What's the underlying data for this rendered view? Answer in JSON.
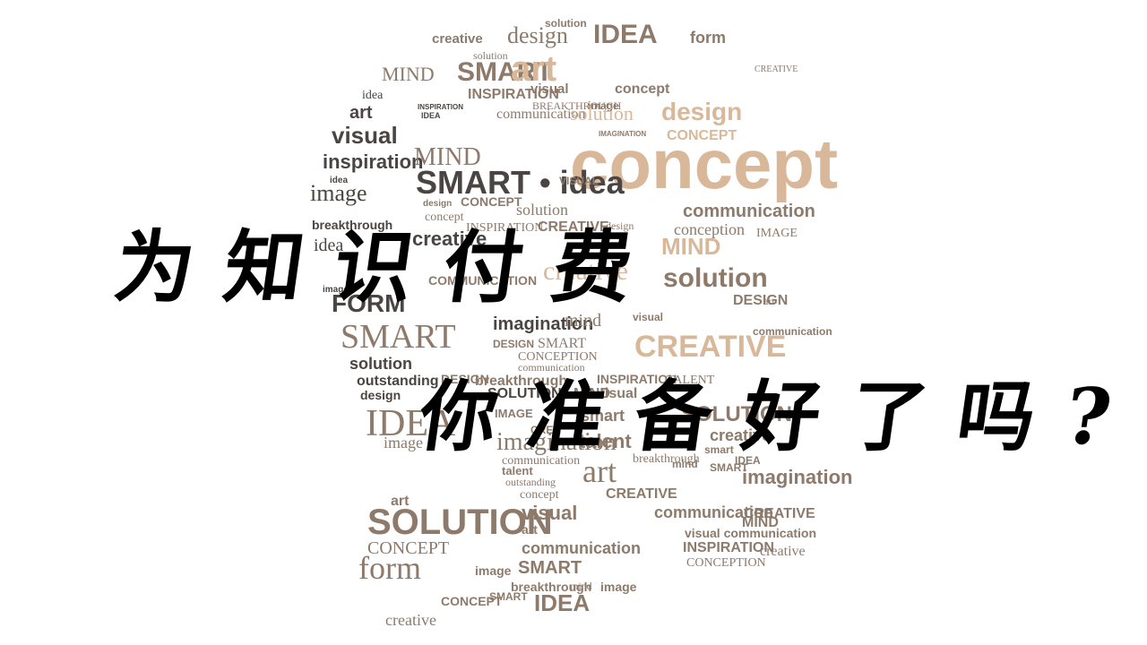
{
  "headline": {
    "line1": "为知识付费",
    "line2": "你准备好了吗?"
  },
  "colors": {
    "text": "#000000",
    "cloud_light": "#d9b89a",
    "cloud_mid": "#8e7a6a",
    "cloud_dark": "#4a4542"
  },
  "cloud_words": [
    "solution",
    "creative",
    "design",
    "IDEA",
    "form",
    "solution",
    "MIND",
    "SMART",
    "art",
    "CREATIVE",
    "idea",
    "INSPIRATION",
    "visual",
    "concept",
    "INSPIRATION",
    "BREAKTHROUGH",
    "image",
    "art",
    "IDEA",
    "communication",
    "solution",
    "design",
    "visual",
    "IMAGINATION",
    "CONCEPT",
    "inspiration",
    "MIND",
    "concept",
    "idea",
    "SMART • idea",
    "VISUAL",
    "image",
    "design",
    "CONCEPT",
    "solution",
    "communication",
    "concept",
    "breakthrough",
    "INSPIRATION",
    "CREATIVE",
    "design",
    "conception",
    "IMAGE",
    "idea",
    "creative",
    "MIND",
    "creative",
    "image",
    "COMMUNICATION",
    "solution",
    "DESIGN",
    "art",
    "FORM",
    "imagination",
    "mind",
    "visual",
    "communication",
    "SMART",
    "DESIGN",
    "SMART",
    "CREATIVE",
    "solution",
    "CONCEPTION",
    "communication",
    "outstanding",
    "breakthrough",
    "INSPIRATION",
    "TALENT",
    "design",
    "SOLUTION",
    "MIND",
    "visual",
    "IDEA",
    "smart",
    "SOLUTION",
    "IMAGE",
    "CREA",
    "image",
    "imagination",
    "talent",
    "creative",
    "smart",
    "communication",
    "breakthrough",
    "art",
    "mind",
    "SMART",
    "IDEA",
    "talent",
    "outstanding",
    "imagination",
    "art",
    "concept",
    "CREATIVE",
    "communication",
    "SOLUTION",
    "visual",
    "CREATIVE",
    "MIND",
    "art",
    "visual communication",
    "CONCEPT",
    "communication",
    "INSPIRATION",
    "creative",
    "form",
    "image",
    "SMART",
    "CONCEPTION",
    "breakthrough",
    "mind",
    "image",
    "CONCEPT",
    "SMART",
    "IDEA",
    "creative",
    "DESIGN"
  ]
}
